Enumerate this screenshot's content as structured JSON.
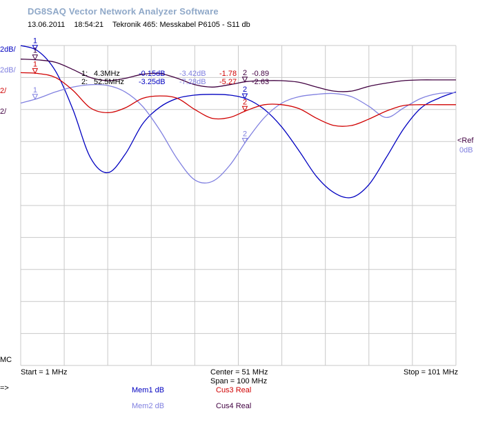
{
  "app_title": "DG8SAQ Vector Network Analyzer Software",
  "date": "13.06.2011",
  "time": "18:54:21",
  "description": "Tekronik 465: Messkabel P6105 - S11 db",
  "scale_labels": [
    {
      "text": "2dB/",
      "color": "#0000c0"
    },
    {
      "text": "2dB/",
      "color": "#8080e0"
    },
    {
      "text": "2/",
      "color": "#d00000"
    },
    {
      "text": "2/",
      "color": "#400040"
    }
  ],
  "marker_table": [
    {
      "id": "1:",
      "freq": "4.3MHz",
      "v1": "-0.15dB",
      "v2": "-3.42dB",
      "v3": "-1.78",
      "v4": "-0.89"
    },
    {
      "id": "2:",
      "freq": "52.5MHz",
      "v1": "-3.25dB",
      "v2": "-7.28dB",
      "v3": "-5.27",
      "v4": "-2.63"
    }
  ],
  "ref_label": "<Ref",
  "ref_value": "0dB",
  "mc_label": "MC",
  "start_label": "Start = 1 MHz",
  "center_label": "Center = 51 MHz",
  "span_label": "Span = 100 MHz",
  "stop_label": "Stop = 101 MHz",
  "arrow_label": "=>",
  "legend": [
    {
      "text": "Mem1 dB",
      "color": "#0000c0"
    },
    {
      "text": "Mem2 dB",
      "color": "#8080e0"
    },
    {
      "text": "Cus3  Real",
      "color": "#d00000"
    },
    {
      "text": "Cus4  Real",
      "color": "#400040"
    }
  ],
  "colors": {
    "mem1": "#0000c0",
    "mem2": "#8080e0",
    "cus3": "#d00000",
    "cus4": "#400040",
    "grid": "#c8c8c8"
  },
  "chart_data": {
    "type": "line",
    "xlim": [
      1,
      101
    ],
    "ylim": [
      -20,
      0
    ],
    "grid": true,
    "x": [
      1,
      5,
      9,
      13,
      17,
      21,
      25,
      29,
      33,
      37,
      41,
      45,
      49,
      53,
      57,
      61,
      65,
      69,
      73,
      77,
      81,
      85,
      89,
      93,
      97,
      101
    ],
    "series": [
      {
        "name": "Mem1 dB",
        "color": "#0000c0",
        "values": [
          0.0,
          -0.35,
          -1.6,
          -4.0,
          -7.0,
          -7.95,
          -6.8,
          -4.9,
          -3.85,
          -3.3,
          -3.1,
          -3.05,
          -3.1,
          -3.35,
          -4.0,
          -5.1,
          -6.6,
          -8.2,
          -9.2,
          -9.5,
          -8.7,
          -7.0,
          -5.2,
          -3.9,
          -3.3,
          -2.9
        ]
      },
      {
        "name": "Mem2 dB",
        "color": "#8080e0",
        "values": [
          -3.6,
          -3.3,
          -2.9,
          -2.6,
          -2.45,
          -2.5,
          -2.9,
          -3.8,
          -5.3,
          -7.1,
          -8.4,
          -8.5,
          -7.5,
          -5.9,
          -4.5,
          -3.6,
          -3.2,
          -3.05,
          -3.0,
          -3.2,
          -3.8,
          -4.5,
          -3.9,
          -3.3,
          -3.0,
          -2.95
        ]
      },
      {
        "name": "Cus3  Real",
        "color": "#d00000",
        "values": [
          -1.7,
          -1.75,
          -2.0,
          -2.8,
          -3.9,
          -4.2,
          -3.9,
          -3.3,
          -3.15,
          -3.3,
          -4.0,
          -4.55,
          -4.5,
          -4.05,
          -3.7,
          -3.7,
          -3.95,
          -4.55,
          -5.0,
          -5.0,
          -4.6,
          -4.1,
          -3.75,
          -3.7,
          -3.7,
          -3.7
        ]
      },
      {
        "name": "Cus4  Real",
        "color": "#400040",
        "values": [
          -0.85,
          -0.9,
          -1.05,
          -1.5,
          -2.0,
          -2.2,
          -2.05,
          -1.8,
          -1.75,
          -2.05,
          -2.45,
          -2.6,
          -2.45,
          -2.25,
          -2.2,
          -2.2,
          -2.3,
          -2.6,
          -2.85,
          -2.85,
          -2.55,
          -2.35,
          -2.2,
          -2.15,
          -2.15,
          -2.15
        ]
      }
    ],
    "markers": [
      {
        "label": "1",
        "x": 4.3
      },
      {
        "label": "2",
        "x": 52.5
      }
    ]
  }
}
